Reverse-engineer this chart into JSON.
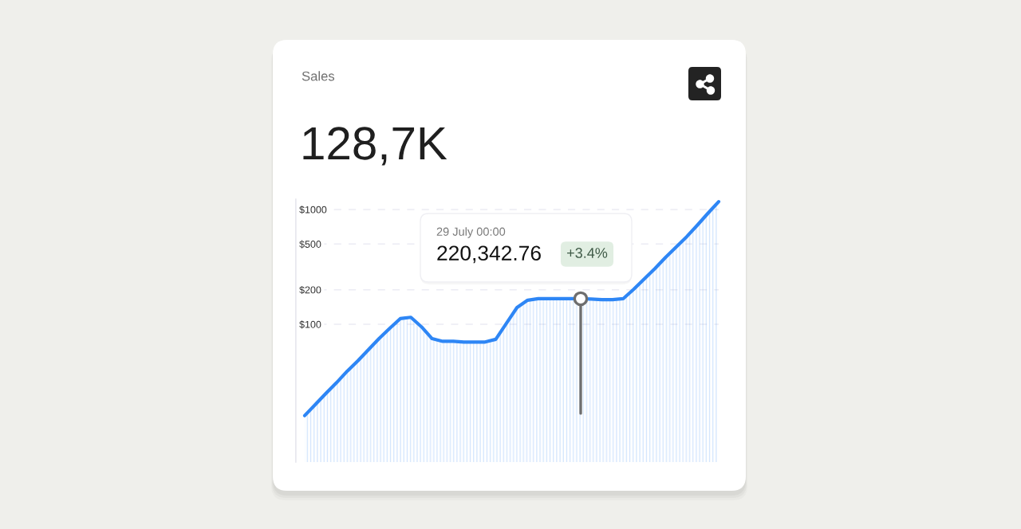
{
  "chart_data": {
    "type": "area",
    "title": "Sales",
    "subtitle": "128,7K",
    "annotations": [
      "29 July 00:00",
      "220,342.76",
      "+3.4%"
    ],
    "categories": [
      null,
      null,
      null,
      null,
      null,
      null,
      null,
      null,
      null,
      null,
      null,
      null,
      null,
      null,
      null,
      null,
      null,
      null,
      null,
      null,
      null,
      null,
      null,
      null,
      null,
      null,
      null,
      null,
      null,
      null,
      null,
      null,
      null,
      null,
      null,
      null,
      null,
      null,
      null,
      null
    ],
    "series": [
      {
        "color": "#2e86f5",
        "values": [
          16,
          20,
          25,
          31,
          39,
          48,
          60,
          75,
          92,
          112,
          115,
          95,
          75,
          71,
          71,
          70,
          70,
          70,
          74,
          102,
          140,
          162,
          167,
          167,
          167,
          167,
          167,
          166,
          164,
          164,
          167,
          202,
          249,
          306,
          383,
          472,
          581,
          732,
          930,
          1170
        ]
      }
    ],
    "ylim": [
      6.3,
      1230
    ],
    "yticks": [
      {
        "value": 100,
        "label": "$100"
      },
      {
        "value": 200,
        "label": "$200"
      },
      {
        "value": 500,
        "label": "$500"
      },
      {
        "value": 1000,
        "label": "$1000"
      }
    ],
    "log": true,
    "grid": "y",
    "tick_labels": "y"
  }
}
